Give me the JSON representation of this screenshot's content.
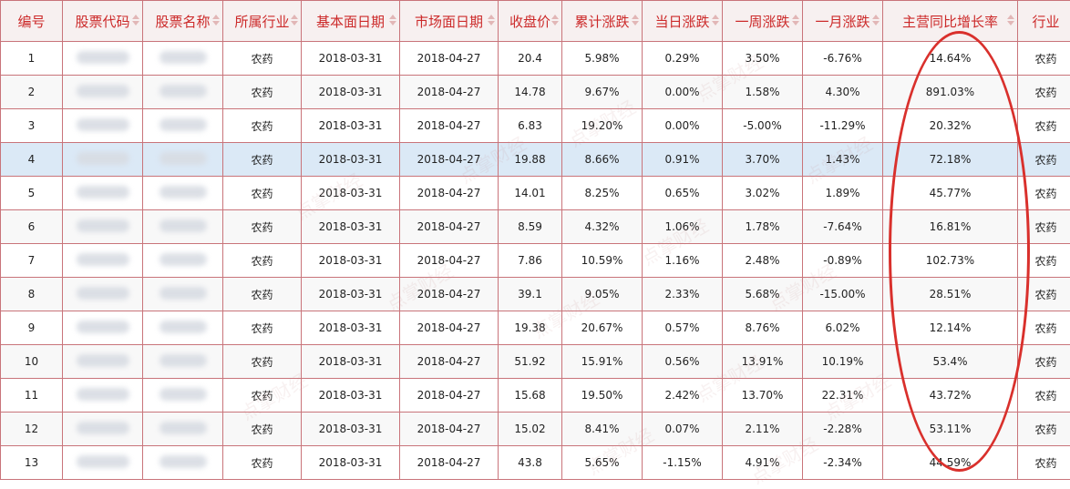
{
  "columns": [
    "编号",
    "股票代码",
    "股票名称",
    "所属行业",
    "基本面日期",
    "市场面日期",
    "收盘价",
    "累计涨跌",
    "当日涨跌",
    "一周涨跌",
    "一月涨跌",
    "主营同比增长率",
    "行业"
  ],
  "rows": [
    {
      "no": "1",
      "code": "",
      "name": "",
      "industry": "农药",
      "fund_date": "2018-03-31",
      "market_date": "2018-04-27",
      "close": "20.4",
      "cum": "5.98%",
      "day": "0.29%",
      "week": "3.50%",
      "month": "-6.76%",
      "growth": "14.64%",
      "industry2": "农药"
    },
    {
      "no": "2",
      "code": "",
      "name": "",
      "industry": "农药",
      "fund_date": "2018-03-31",
      "market_date": "2018-04-27",
      "close": "14.78",
      "cum": "9.67%",
      "day": "0.00%",
      "week": "1.58%",
      "month": "4.30%",
      "growth": "891.03%",
      "industry2": "农药"
    },
    {
      "no": "3",
      "code": "",
      "name": "",
      "industry": "农药",
      "fund_date": "2018-03-31",
      "market_date": "2018-04-27",
      "close": "6.83",
      "cum": "19.20%",
      "day": "0.00%",
      "week": "-5.00%",
      "month": "-11.29%",
      "growth": "20.32%",
      "industry2": "农药"
    },
    {
      "no": "4",
      "code": "",
      "name": "",
      "industry": "农药",
      "fund_date": "2018-03-31",
      "market_date": "2018-04-27",
      "close": "19.88",
      "cum": "8.66%",
      "day": "0.91%",
      "week": "3.70%",
      "month": "1.43%",
      "growth": "72.18%",
      "industry2": "农药"
    },
    {
      "no": "5",
      "code": "",
      "name": "",
      "industry": "农药",
      "fund_date": "2018-03-31",
      "market_date": "2018-04-27",
      "close": "14.01",
      "cum": "8.25%",
      "day": "0.65%",
      "week": "3.02%",
      "month": "1.89%",
      "growth": "45.77%",
      "industry2": "农药"
    },
    {
      "no": "6",
      "code": "",
      "name": "",
      "industry": "农药",
      "fund_date": "2018-03-31",
      "market_date": "2018-04-27",
      "close": "8.59",
      "cum": "4.32%",
      "day": "1.06%",
      "week": "1.78%",
      "month": "-7.64%",
      "growth": "16.81%",
      "industry2": "农药"
    },
    {
      "no": "7",
      "code": "",
      "name": "",
      "industry": "农药",
      "fund_date": "2018-03-31",
      "market_date": "2018-04-27",
      "close": "7.86",
      "cum": "10.59%",
      "day": "1.16%",
      "week": "2.48%",
      "month": "-0.89%",
      "growth": "102.73%",
      "industry2": "农药"
    },
    {
      "no": "8",
      "code": "",
      "name": "",
      "industry": "农药",
      "fund_date": "2018-03-31",
      "market_date": "2018-04-27",
      "close": "39.1",
      "cum": "9.05%",
      "day": "2.33%",
      "week": "5.68%",
      "month": "-15.00%",
      "growth": "28.51%",
      "industry2": "农药"
    },
    {
      "no": "9",
      "code": "",
      "name": "",
      "industry": "农药",
      "fund_date": "2018-03-31",
      "market_date": "2018-04-27",
      "close": "19.38",
      "cum": "20.67%",
      "day": "0.57%",
      "week": "8.76%",
      "month": "6.02%",
      "growth": "12.14%",
      "industry2": "农药"
    },
    {
      "no": "10",
      "code": "",
      "name": "",
      "industry": "农药",
      "fund_date": "2018-03-31",
      "market_date": "2018-04-27",
      "close": "51.92",
      "cum": "15.91%",
      "day": "0.56%",
      "week": "13.91%",
      "month": "10.19%",
      "growth": "53.4%",
      "industry2": "农药"
    },
    {
      "no": "11",
      "code": "",
      "name": "",
      "industry": "农药",
      "fund_date": "2018-03-31",
      "market_date": "2018-04-27",
      "close": "15.68",
      "cum": "19.50%",
      "day": "2.42%",
      "week": "13.70%",
      "month": "22.31%",
      "growth": "43.72%",
      "industry2": "农药"
    },
    {
      "no": "12",
      "code": "",
      "name": "",
      "industry": "农药",
      "fund_date": "2018-03-31",
      "market_date": "2018-04-27",
      "close": "15.02",
      "cum": "8.41%",
      "day": "0.07%",
      "week": "2.11%",
      "month": "-2.28%",
      "growth": "53.11%",
      "industry2": "农药"
    },
    {
      "no": "13",
      "code": "",
      "name": "",
      "industry": "农药",
      "fund_date": "2018-03-31",
      "market_date": "2018-04-27",
      "close": "43.8",
      "cum": "5.65%",
      "day": "-1.15%",
      "week": "4.91%",
      "month": "-2.34%",
      "growth": "44.59%",
      "industry2": "农药"
    }
  ],
  "selected_row": "4",
  "watermark_text": "点掌财经",
  "colors": {
    "header_text": "#cc2a2a",
    "border": "#c9747a",
    "selected_row": "#dbe9f6",
    "highlight_ellipse": "#d9302c"
  }
}
